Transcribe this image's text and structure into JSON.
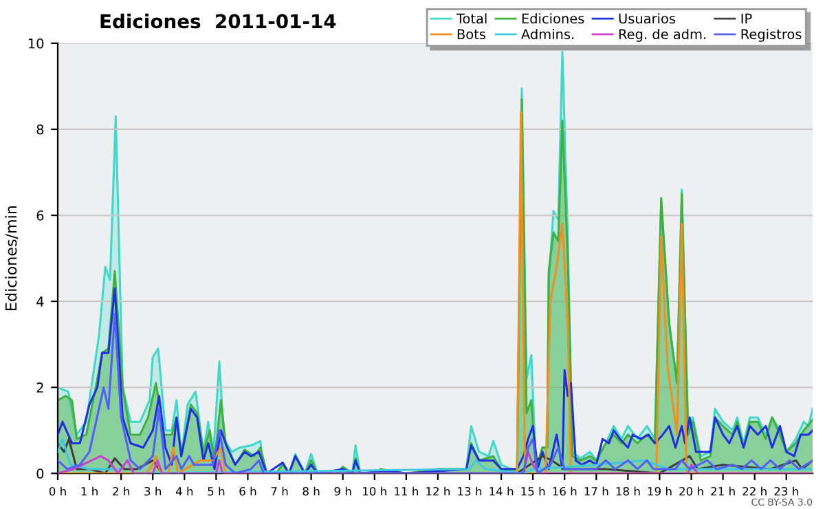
{
  "chart_data": {
    "type": "line",
    "title": "Ediciones  2011-01-14",
    "ylabel": "Ediciones/min",
    "annotations": [
      "CC BY-SA 3.0"
    ],
    "xlim": [
      0,
      23.83
    ],
    "ylim": [
      0,
      10
    ],
    "xticks": [
      {
        "value": 0,
        "label": "0 h"
      },
      {
        "value": 1,
        "label": "1 h"
      },
      {
        "value": 2,
        "label": "2 h"
      },
      {
        "value": 3,
        "label": "3 h"
      },
      {
        "value": 4,
        "label": "4 h"
      },
      {
        "value": 5,
        "label": "5 h"
      },
      {
        "value": 6,
        "label": "6 h"
      },
      {
        "value": 7,
        "label": "7 h"
      },
      {
        "value": 8,
        "label": "8 h"
      },
      {
        "value": 9,
        "label": "9 h"
      },
      {
        "value": 10,
        "label": "10 h"
      },
      {
        "value": 11,
        "label": "11 h"
      },
      {
        "value": 12,
        "label": "12 h"
      },
      {
        "value": 13,
        "label": "13 h"
      },
      {
        "value": 14,
        "label": "14 h"
      },
      {
        "value": 15,
        "label": "15 h"
      },
      {
        "value": 16,
        "label": "16 h"
      },
      {
        "value": 17,
        "label": "17 h"
      },
      {
        "value": 18,
        "label": "18 h"
      },
      {
        "value": 19,
        "label": "19 h"
      },
      {
        "value": 20,
        "label": "20 h"
      },
      {
        "value": 21,
        "label": "21 h"
      },
      {
        "value": 22,
        "label": "22 h"
      },
      {
        "value": 23,
        "label": "23 h"
      }
    ],
    "yticks": [
      0,
      2,
      4,
      6,
      8,
      10
    ],
    "grid": "y",
    "legend": "top right",
    "series": [
      {
        "name": "Total",
        "type": "area",
        "color": "#40d8c8",
        "x": [
          0,
          0.33,
          0.6,
          0.9,
          1.3,
          1.5,
          1.65,
          1.83,
          2.05,
          2.3,
          2.6,
          2.9,
          3.0,
          3.17,
          3.4,
          3.6,
          3.75,
          3.9,
          4.1,
          4.35,
          4.6,
          4.75,
          4.9,
          5.1,
          5.25,
          5.5,
          5.75,
          6.1,
          6.4,
          6.5,
          6.9,
          7.1,
          7.3,
          7.5,
          7.8,
          8.0,
          8.2,
          8.8,
          9.0,
          9.3,
          9.4,
          9.55,
          10.0,
          10.2,
          10.5,
          11.0,
          11.5,
          12.0,
          12.5,
          12.9,
          13.05,
          13.3,
          13.6,
          13.75,
          14.0,
          14.3,
          14.5,
          14.65,
          14.8,
          14.95,
          15.1,
          15.3,
          15.45,
          15.5,
          15.65,
          15.8,
          15.93,
          16.1,
          16.25,
          16.5,
          16.8,
          17.0,
          17.3,
          17.55,
          17.8,
          18.0,
          18.3,
          18.6,
          18.85,
          19.05,
          19.3,
          19.55,
          19.7,
          19.9,
          20.05,
          20.3,
          20.6,
          20.75,
          21.0,
          21.3,
          21.45,
          21.65,
          21.85,
          22.1,
          22.35,
          22.55,
          22.8,
          23.0,
          23.3,
          23.55,
          23.7,
          23.83
        ],
        "values": [
          2.0,
          1.9,
          0.9,
          1.2,
          3.2,
          4.8,
          4.5,
          8.3,
          2.0,
          1.2,
          1.2,
          1.7,
          2.7,
          2.9,
          1.0,
          1.0,
          1.7,
          0.4,
          1.6,
          1.9,
          0.5,
          1.2,
          0.3,
          2.6,
          0.8,
          0.5,
          0.6,
          0.65,
          0.75,
          0,
          0,
          0.25,
          0,
          0.45,
          0,
          0.45,
          0,
          0,
          0.15,
          0,
          0.65,
          0,
          0,
          0.1,
          0.05,
          0,
          0,
          0.1,
          0.1,
          0.1,
          1.1,
          0.5,
          0.4,
          0.75,
          0.2,
          0.1,
          0.1,
          8.95,
          2.2,
          2.75,
          0.1,
          0.6,
          0.6,
          4.5,
          6.1,
          5.9,
          9.8,
          5.5,
          0.5,
          0.35,
          0.5,
          0.3,
          0.7,
          1.1,
          0.8,
          1.1,
          0.8,
          1.1,
          0.8,
          6.3,
          3.5,
          2.1,
          6.6,
          1.0,
          1.3,
          0.4,
          0.5,
          1.5,
          1.2,
          1.0,
          1.3,
          0.7,
          1.3,
          1.3,
          0.9,
          1.3,
          1.0,
          0.5,
          0.8,
          1.2,
          1.1,
          1.5
        ]
      },
      {
        "name": "Ediciones",
        "type": "area",
        "color": "#40b040",
        "x": [
          0,
          0.25,
          0.45,
          0.6,
          0.9,
          1.2,
          1.4,
          1.6,
          1.8,
          2.05,
          2.3,
          2.6,
          2.85,
          3.1,
          3.35,
          3.6,
          3.75,
          3.9,
          4.2,
          4.4,
          4.6,
          4.8,
          4.95,
          5.15,
          5.3,
          5.6,
          5.9,
          6.2,
          6.4,
          6.6,
          6.9,
          7.1,
          7.3,
          7.5,
          7.8,
          8.0,
          8.2,
          8.8,
          9.0,
          9.3,
          9.4,
          9.55,
          10.0,
          10.2,
          10.5,
          11.0,
          12.0,
          12.9,
          13.05,
          13.3,
          13.75,
          14.0,
          14.5,
          14.65,
          14.8,
          14.95,
          15.1,
          15.3,
          15.45,
          15.5,
          15.65,
          15.8,
          15.93,
          16.1,
          16.25,
          16.5,
          16.8,
          17.0,
          17.3,
          17.55,
          17.8,
          18.0,
          18.3,
          18.6,
          18.85,
          19.05,
          19.3,
          19.55,
          19.7,
          19.9,
          20.05,
          20.3,
          20.6,
          20.75,
          21.0,
          21.3,
          21.45,
          21.65,
          21.85,
          22.1,
          22.35,
          22.55,
          22.8,
          23.0,
          23.3,
          23.55,
          23.83
        ],
        "values": [
          1.7,
          1.8,
          1.7,
          0.8,
          0.9,
          2.0,
          2.8,
          2.9,
          4.7,
          2.0,
          0.9,
          0.9,
          1.3,
          2.1,
          0.9,
          0.9,
          1.3,
          0.4,
          1.6,
          1.4,
          0.5,
          1.0,
          0.3,
          1.7,
          0.7,
          0.2,
          0.55,
          0.4,
          0.6,
          0,
          0,
          0.2,
          0,
          0.4,
          0,
          0.3,
          0,
          0,
          0.15,
          0,
          0.35,
          0,
          0,
          0.1,
          0.05,
          0,
          0.1,
          0.1,
          0.7,
          0.3,
          0.4,
          0.1,
          0.1,
          8.7,
          1.4,
          1.7,
          0.1,
          0.6,
          0.6,
          4.7,
          5.6,
          5.4,
          8.2,
          5.0,
          0.4,
          0.3,
          0.4,
          0.3,
          0.7,
          0.9,
          0.7,
          0.9,
          0.7,
          0.9,
          0.7,
          6.4,
          3.5,
          2.1,
          6.5,
          0.9,
          1.2,
          0.3,
          0.4,
          1.3,
          1.1,
          0.9,
          1.2,
          0.6,
          1.2,
          1.2,
          0.8,
          1.3,
          0.9,
          0.5,
          0.7,
          1.0,
          1.25
        ]
      },
      {
        "name": "Usuarios",
        "color": "#2030e0",
        "x": [
          0,
          0.15,
          0.45,
          0.7,
          1.0,
          1.25,
          1.4,
          1.6,
          1.8,
          2.05,
          2.3,
          2.7,
          3.0,
          3.2,
          3.4,
          3.6,
          3.75,
          3.9,
          4.2,
          4.4,
          4.6,
          4.75,
          4.95,
          5.15,
          5.35,
          5.6,
          5.9,
          6.1,
          6.35,
          6.6,
          7.1,
          7.3,
          7.5,
          7.8,
          8.0,
          8.2,
          9.0,
          9.3,
          9.4,
          9.55,
          10.2,
          10.5,
          11.0,
          12.0,
          12.9,
          13.05,
          13.3,
          13.75,
          14.0,
          14.5,
          14.7,
          14.85,
          15.0,
          15.15,
          15.3,
          15.5,
          15.75,
          15.93,
          16.0,
          16.1,
          16.2,
          16.35,
          16.55,
          16.8,
          17.0,
          17.2,
          17.4,
          17.55,
          17.75,
          18.0,
          18.15,
          18.4,
          18.65,
          18.85,
          19.1,
          19.3,
          19.5,
          19.7,
          19.8,
          19.95,
          20.15,
          20.4,
          20.6,
          20.75,
          21.0,
          21.2,
          21.45,
          21.65,
          21.85,
          22.1,
          22.35,
          22.55,
          22.8,
          23.0,
          23.25,
          23.45,
          23.7,
          23.83
        ],
        "values": [
          0.9,
          1.2,
          0.7,
          0.7,
          1.6,
          2.0,
          2.8,
          2.8,
          4.3,
          1.3,
          0.7,
          0.6,
          1.0,
          1.8,
          0.6,
          0.2,
          1.3,
          0.4,
          1.5,
          1.3,
          0.3,
          0.7,
          0.1,
          1.0,
          0.6,
          0.2,
          0.5,
          0.4,
          0.5,
          0,
          0.25,
          0,
          0.4,
          0,
          0.2,
          0,
          0.1,
          0,
          0.3,
          0,
          0.05,
          0.05,
          0,
          0.05,
          0.1,
          0.65,
          0.3,
          0.3,
          0.1,
          0.1,
          0.4,
          0.8,
          1.1,
          0.1,
          0.5,
          0.1,
          0.9,
          0.1,
          2.4,
          1.8,
          2.1,
          0.3,
          0.2,
          0.3,
          0.2,
          0.8,
          0.7,
          1.0,
          0.8,
          0.6,
          0.9,
          0.8,
          0.9,
          0.7,
          0.9,
          1.1,
          0.6,
          1.1,
          0.7,
          1.3,
          0.5,
          0.5,
          0.5,
          1.3,
          0.9,
          0.7,
          1.1,
          0.6,
          1.1,
          0.9,
          1.1,
          0.6,
          1.1,
          0.5,
          0.4,
          0.9,
          0.9,
          1.0
        ]
      },
      {
        "name": "IP",
        "color": "#404040",
        "x": [
          0,
          0.2,
          0.35,
          0.6,
          1.0,
          1.5,
          1.8,
          2.1,
          2.5,
          3.0,
          3.3,
          14.5,
          15.3,
          15.6,
          16.0,
          17.3,
          19.0,
          19.95,
          20.2,
          21.0,
          22.5,
          23.3,
          23.5,
          23.83
        ],
        "values": [
          0.7,
          0.5,
          0.8,
          0.1,
          0.1,
          0,
          0.35,
          0.1,
          0.1,
          0.3,
          0,
          0,
          0.4,
          0.3,
          0.1,
          0.1,
          0,
          0.4,
          0.1,
          0.2,
          0.1,
          0.3,
          0.1,
          0.3
        ]
      },
      {
        "name": "Bots",
        "color": "#f09020",
        "x": [
          0,
          2.8,
          3.0,
          3.1,
          3.25,
          3.5,
          3.65,
          3.8,
          4.5,
          4.9,
          5.15,
          5.3,
          14.5,
          14.62,
          14.75,
          15.4,
          15.55,
          15.75,
          15.93,
          16.1,
          16.2,
          18.9,
          19.05,
          19.25,
          19.55,
          19.7,
          19.85,
          23.83
        ],
        "values": [
          0,
          0,
          0.2,
          0.4,
          0,
          0,
          0.6,
          0,
          0.3,
          0.3,
          0.6,
          0,
          0,
          8.4,
          0,
          0,
          4.0,
          4.8,
          5.8,
          3.5,
          0,
          0,
          5.5,
          2.5,
          0.9,
          5.8,
          0,
          0
        ]
      },
      {
        "name": "Admins.",
        "color": "#40c8e0",
        "x": [
          0,
          0.15,
          0.4,
          1.0,
          2.0,
          2.2,
          2.4,
          13.0,
          13.2,
          13.5,
          14.7,
          15.0,
          17.0,
          18.5,
          19.3,
          20.5,
          23.83
        ],
        "values": [
          0.5,
          0.8,
          0.2,
          0.1,
          0.1,
          0.3,
          0,
          0.1,
          0.3,
          0.1,
          0,
          0.1,
          0.2,
          0.3,
          0.1,
          0.1,
          0.1
        ]
      },
      {
        "name": "Reg. de adm.",
        "color": "#d040d0",
        "x": [
          0,
          0.5,
          1.35,
          1.6,
          1.9,
          2.2,
          2.4,
          3.0,
          3.15,
          3.3,
          5.0,
          5.1,
          5.2,
          14.7,
          14.85,
          15.0,
          15.2,
          19.9,
          20.0,
          20.2,
          23.83
        ],
        "values": [
          0,
          0.1,
          0.4,
          0.3,
          0,
          0.3,
          0,
          0,
          0.3,
          0,
          0,
          0.3,
          0,
          0,
          0.5,
          0.2,
          0,
          0,
          0.2,
          0,
          0
        ]
      },
      {
        "name": "Registros",
        "color": "#5060f8",
        "x": [
          0,
          0.3,
          0.7,
          1.0,
          1.3,
          1.45,
          1.6,
          1.8,
          2.0,
          2.3,
          2.6,
          3.0,
          3.2,
          3.4,
          3.75,
          3.9,
          4.15,
          4.3,
          4.9,
          5.1,
          5.3,
          5.6,
          6.1,
          6.35,
          6.5,
          14.7,
          14.85,
          15.0,
          15.15,
          15.55,
          15.8,
          16.0,
          17.0,
          17.3,
          17.6,
          18.0,
          18.3,
          18.6,
          18.8,
          19.5,
          19.7,
          19.95,
          20.5,
          20.8,
          21.3,
          21.6,
          21.9,
          22.2,
          22.5,
          22.8,
          23.1,
          23.4,
          23.83
        ],
        "values": [
          0.3,
          0.1,
          0.2,
          0.5,
          1.5,
          2.0,
          1.5,
          3.7,
          1.3,
          0.3,
          0.1,
          0.4,
          1.5,
          0.1,
          0.4,
          0.1,
          0.4,
          0.2,
          0.2,
          1.0,
          0.2,
          0,
          0.1,
          0.3,
          0,
          0,
          0.6,
          0.8,
          0,
          0.2,
          0.6,
          0.1,
          0.1,
          0.3,
          0.1,
          0.3,
          0.1,
          0.3,
          0.1,
          0.1,
          0.3,
          0.1,
          0.3,
          0.1,
          0.2,
          0.1,
          0.3,
          0.1,
          0.3,
          0.1,
          0.3,
          0.1,
          0.3
        ]
      }
    ]
  }
}
